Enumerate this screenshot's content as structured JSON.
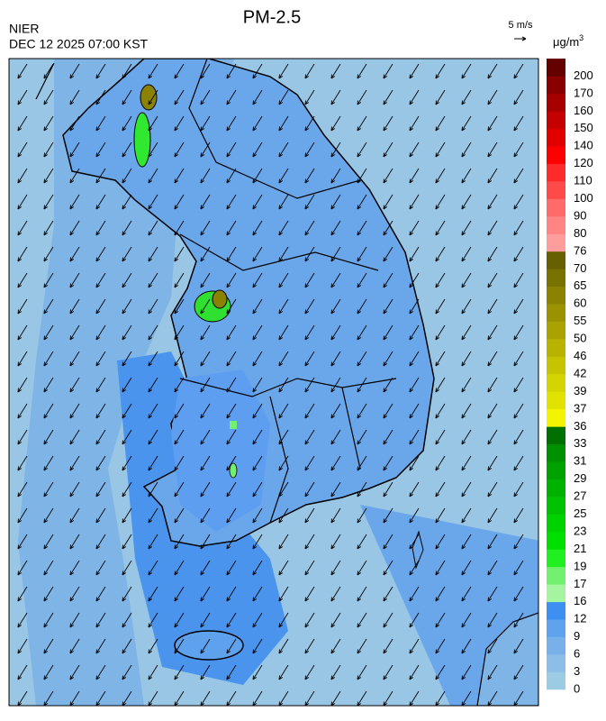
{
  "header": {
    "title": "PM-2.5",
    "agency": "NIER",
    "datetime": "DEC 12 2025 07:00 KST"
  },
  "wind_key": {
    "label": "5 m/s"
  },
  "colorbar": {
    "unit": {
      "base": "μg/m",
      "exponent": "3"
    },
    "labels": [
      0,
      3,
      6,
      9,
      12,
      16,
      17,
      19,
      21,
      23,
      25,
      27,
      29,
      31,
      33,
      36,
      37,
      39,
      42,
      46,
      50,
      55,
      60,
      65,
      70,
      76,
      80,
      90,
      100,
      110,
      120,
      140,
      150,
      160,
      170,
      200
    ],
    "colors": [
      "#9ccbe4",
      "#8cbee8",
      "#78b0ea",
      "#5fa2ee",
      "#3d8ff2",
      "#a4f4a0",
      "#74f070",
      "#20f020",
      "#00e000",
      "#00d200",
      "#00c200",
      "#00b200",
      "#00a200",
      "#009000",
      "#007000",
      "#f4f400",
      "#e2e200",
      "#d4d400",
      "#c6c400",
      "#b8b200",
      "#aaa200",
      "#9a9200",
      "#8a8200",
      "#7a7200",
      "#686000",
      "#ff9c9c",
      "#ff8484",
      "#ff6a6a",
      "#ff4a4a",
      "#ff2a2a",
      "#ff0000",
      "#e00000",
      "#c40000",
      "#a60000",
      "#880000",
      "#640000"
    ]
  }
}
